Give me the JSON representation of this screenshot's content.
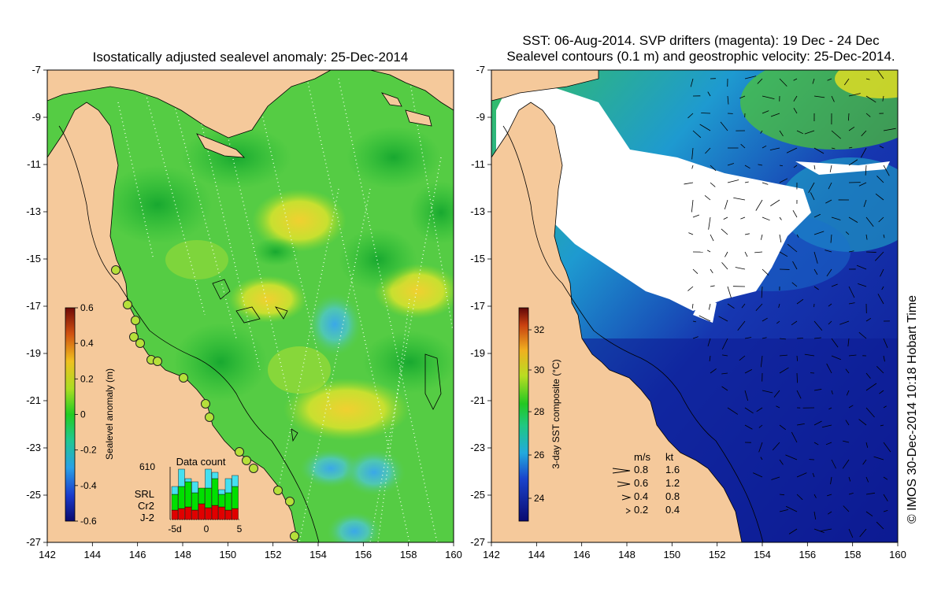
{
  "left": {
    "title": "Isostatically adjusted sealevel anomaly: 25-Dec-2014",
    "lat_ticks": [
      "-7",
      "-9",
      "-11",
      "-13",
      "-15",
      "-17",
      "-19",
      "-21",
      "-23",
      "-25",
      "-27"
    ],
    "lon_ticks": [
      "142",
      "144",
      "146",
      "148",
      "150",
      "152",
      "154",
      "156",
      "158",
      "160"
    ],
    "colorbar": {
      "title": "Sealevel anomaly (m)",
      "ticks": [
        "0.6",
        "0.4",
        "0.2",
        "0",
        "-0.2",
        "-0.4",
        "-0.6"
      ]
    },
    "data_count": {
      "title": "Data count",
      "max_label": "610",
      "series": [
        "SRL",
        "Cr2",
        "J-2"
      ],
      "series_colors": [
        "#44e0f0",
        "#00e000",
        "#e00000"
      ],
      "xticks": [
        "-5d",
        "0",
        "5"
      ]
    }
  },
  "right": {
    "title_line1": "SST: 06-Aug-2014. SVP drifters (magenta): 19 Dec - 24 Dec",
    "title_line2": "Sealevel contours (0.1 m) and geostrophic velocity: 25-Dec-2014.",
    "lat_ticks": [
      "-7",
      "-9",
      "-11",
      "-13",
      "-15",
      "-17",
      "-19",
      "-21",
      "-23",
      "-25",
      "-27"
    ],
    "lon_ticks": [
      "142",
      "144",
      "146",
      "148",
      "150",
      "152",
      "154",
      "156",
      "158",
      "160"
    ],
    "colorbar": {
      "title": "3-day SST composite (°C)",
      "ticks": [
        "32",
        "30",
        "28",
        "26",
        "24"
      ]
    },
    "velocity_legend": {
      "header_ms": "m/s",
      "header_kt": "kt",
      "rows": [
        {
          "ms": "0.8",
          "kt": "1.6"
        },
        {
          "ms": "0.6",
          "kt": "1.2"
        },
        {
          "ms": "0.4",
          "kt": "0.8"
        },
        {
          "ms": "0.2",
          "kt": "0.4"
        }
      ]
    }
  },
  "credit": "© IMOS 30-Dec-2014 10:18 Hobart Time",
  "colors": {
    "land": "#f5c99b",
    "anomaly_green": "#33cc33",
    "sst_blue": "#0f1a99"
  }
}
